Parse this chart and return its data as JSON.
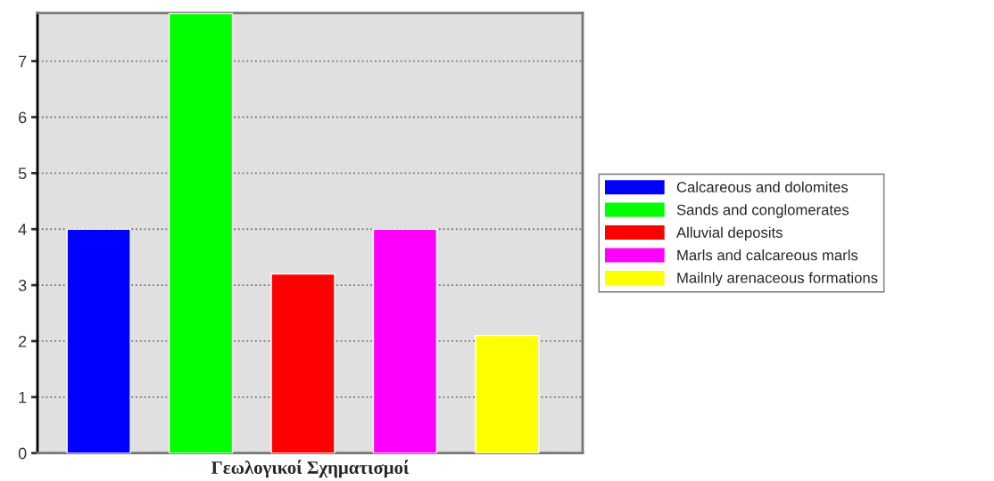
{
  "chart_data": {
    "type": "bar",
    "xlabel": "Γεωλογικοί Σχηματισμοί",
    "categories": [
      null,
      null,
      null,
      null,
      null
    ],
    "series": [
      {
        "name": "Calcareous and dolomites",
        "color": "#0000ff",
        "values": [
          4.0,
          null,
          null,
          null,
          null
        ]
      },
      {
        "name": "Sands and conglomerates",
        "color": "#00ff00",
        "values": [
          null,
          7.85,
          null,
          null,
          null
        ]
      },
      {
        "name": "Alluvial deposits",
        "color": "#ff0000",
        "values": [
          null,
          null,
          3.2,
          null,
          null
        ]
      },
      {
        "name": "Marls and calcareous marls",
        "color": "#ff00ff",
        "values": [
          null,
          null,
          null,
          4.0,
          null
        ]
      },
      {
        "name": "Mailnly arenaceous formations",
        "color": "#ffff00",
        "values": [
          null,
          null,
          null,
          null,
          2.1
        ]
      }
    ],
    "ylim": [
      0,
      7.86
    ],
    "yticks": [
      0,
      1,
      2,
      3,
      4,
      5,
      6,
      7
    ],
    "grid": "y",
    "legend": "right"
  }
}
